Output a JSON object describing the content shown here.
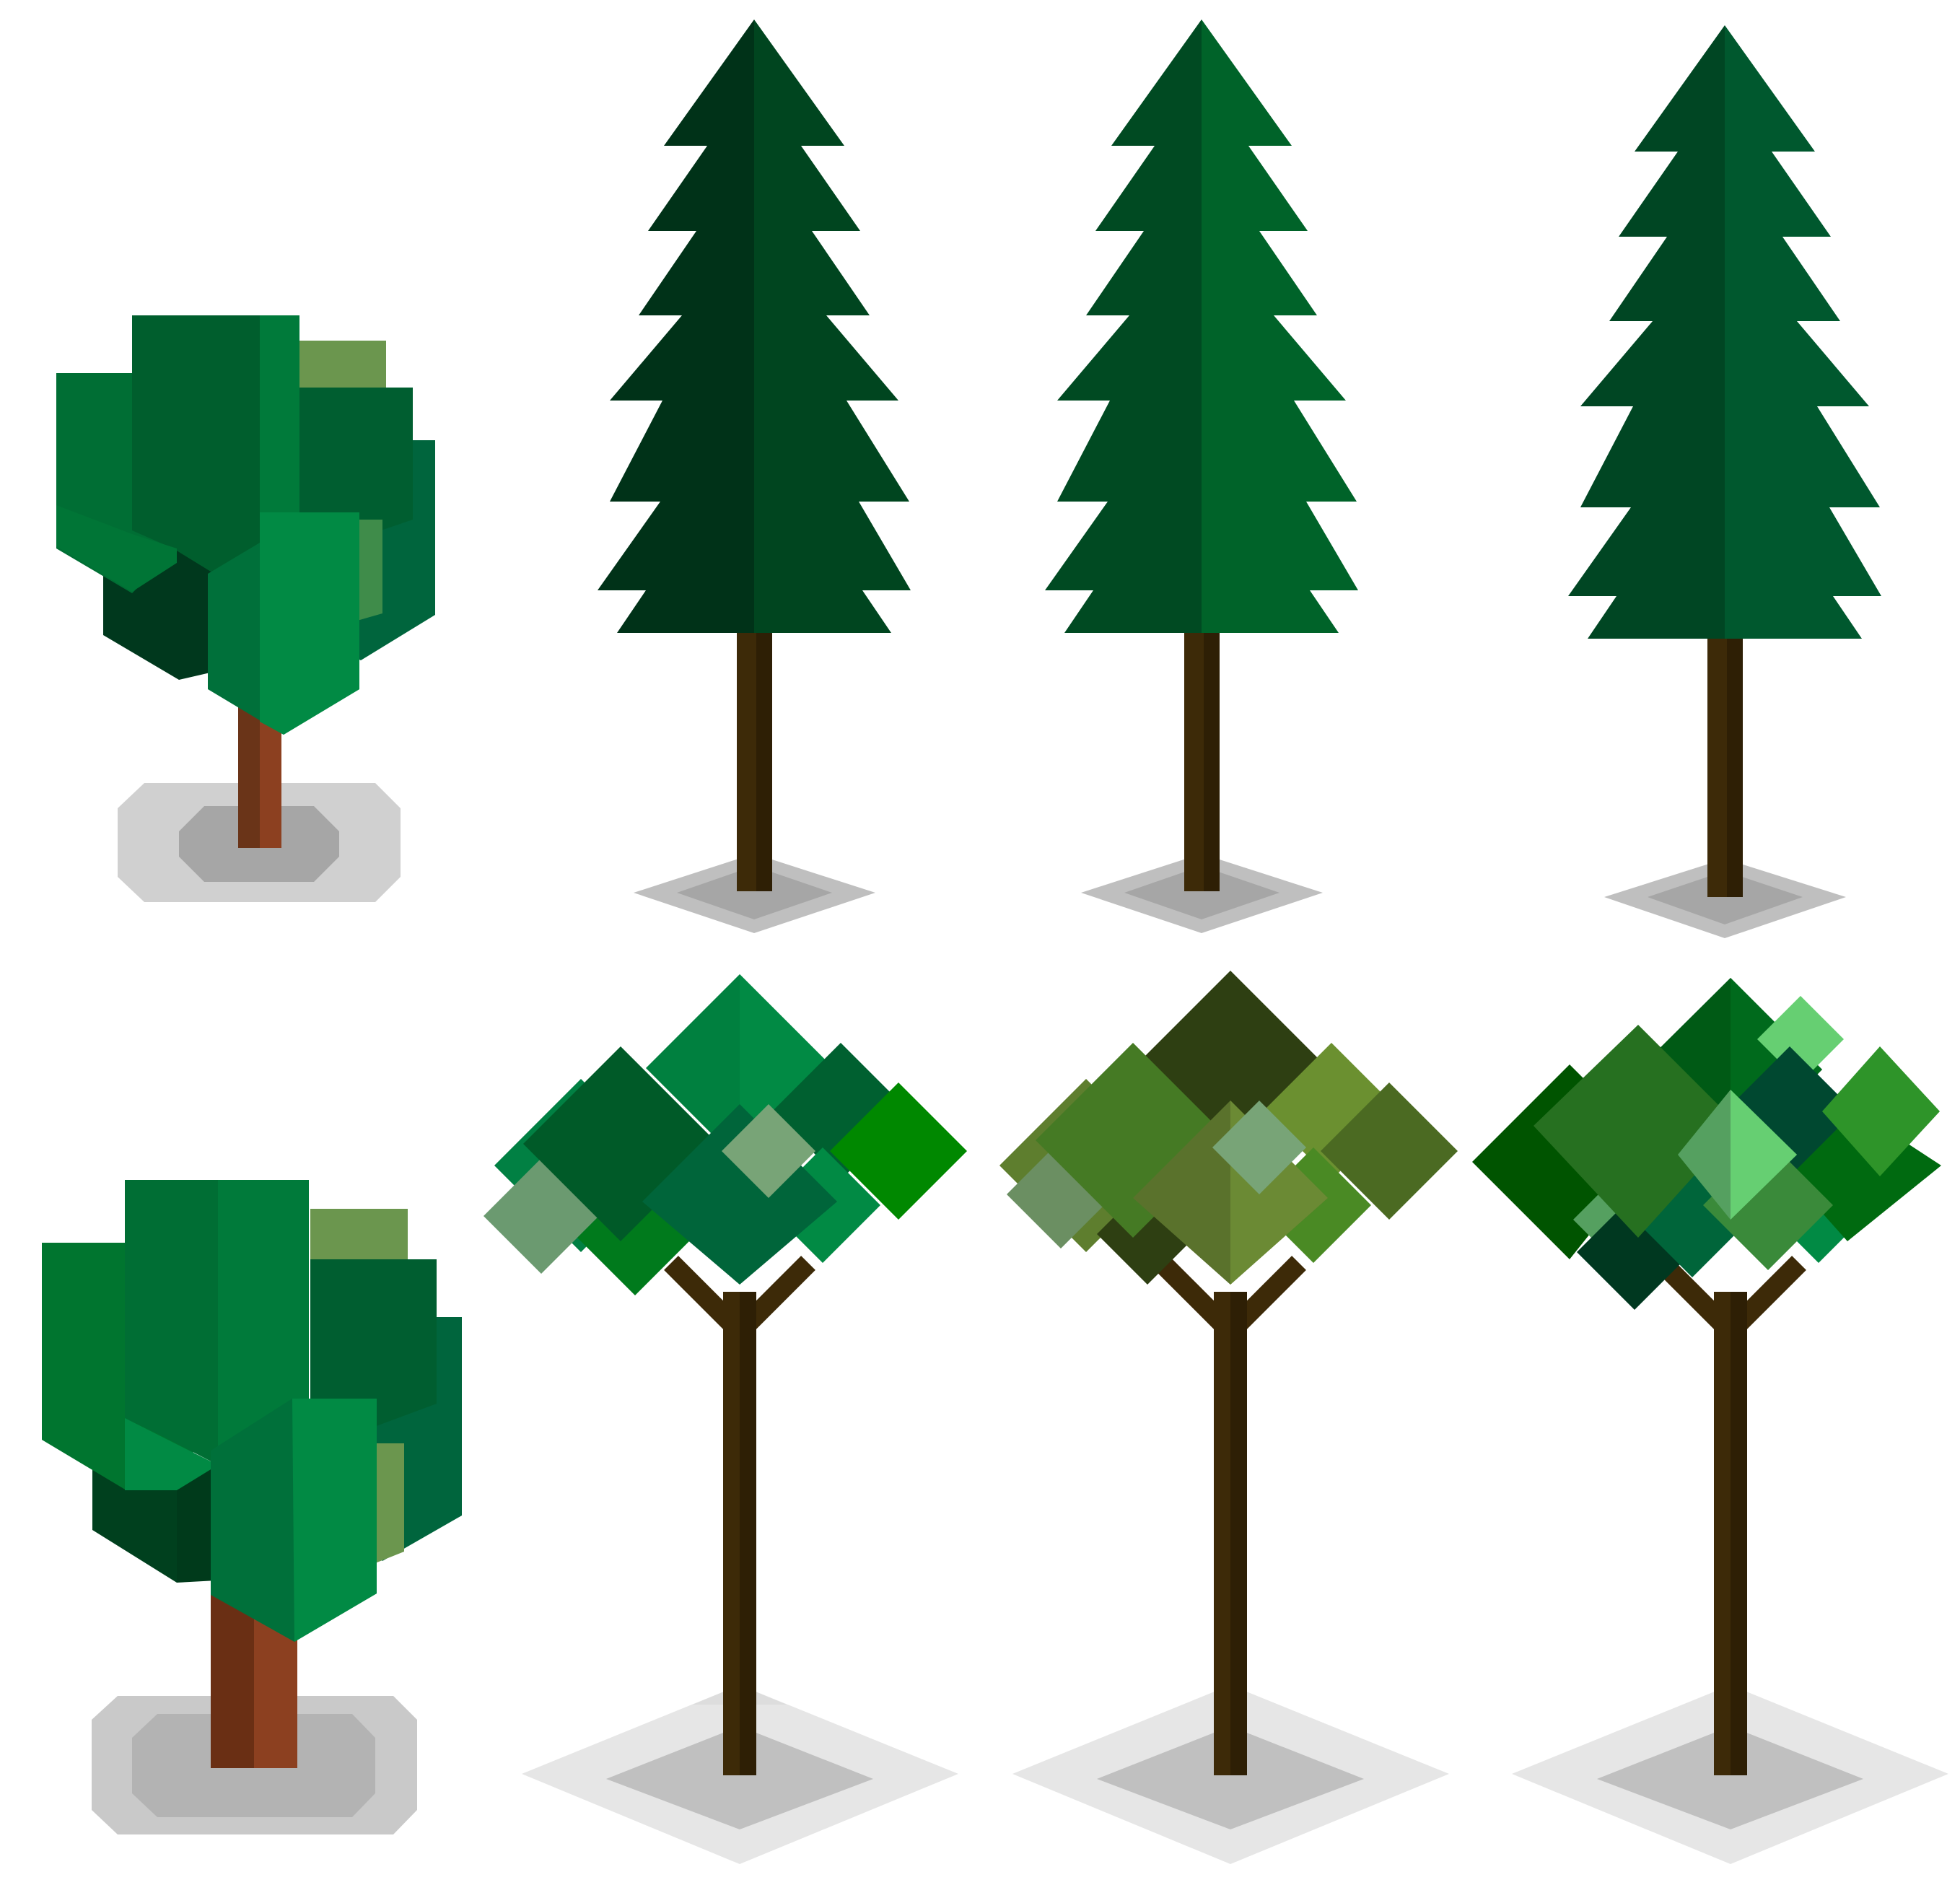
{
  "sprite_sheet": {
    "background": "#ffffff",
    "rows": 2,
    "columns": 4,
    "tiles": [
      {
        "kind": "voxel-bush-tree",
        "variant": "small",
        "base": "rounded-octagon"
      },
      {
        "kind": "pine-tree",
        "palette": [
          "#003218",
          "#00451F"
        ]
      },
      {
        "kind": "pine-tree",
        "palette": [
          "#004A22",
          "#006329"
        ]
      },
      {
        "kind": "pine-tree",
        "palette": [
          "#004623",
          "#00582E"
        ]
      },
      {
        "kind": "voxel-bush-tree",
        "variant": "large",
        "base": "rounded-octagon"
      },
      {
        "kind": "diamond-canopy-tree",
        "season": "green"
      },
      {
        "kind": "diamond-canopy-tree",
        "season": "olive"
      },
      {
        "kind": "diamond-canopy-tree",
        "season": "mixed-green"
      }
    ]
  },
  "colors": {
    "trunk_dark": "#3D2A08",
    "trunk_brown_light": "#8C4020",
    "trunk_brown_dark": "#6A3418",
    "shadow_outer": "#D0D0D0",
    "shadow_inner": "#A6A6A6",
    "diamond_shadow_outer": "#E6E6E6",
    "diamond_shadow_inner": "#C0C0C0"
  }
}
